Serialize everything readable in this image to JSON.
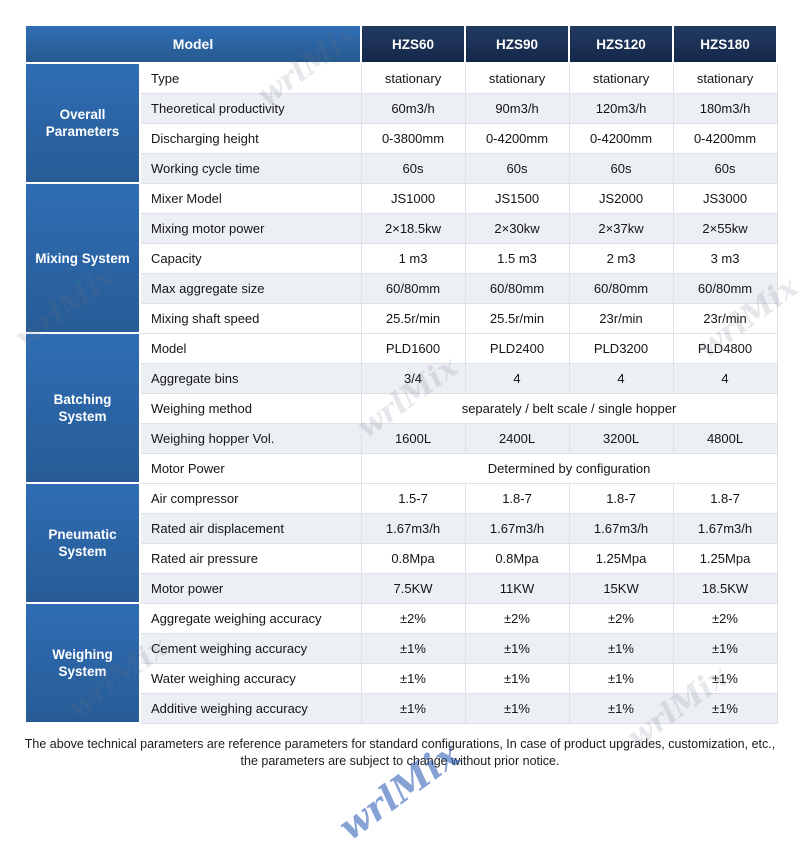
{
  "header": {
    "model_label": "Model",
    "columns": [
      "HZS60",
      "HZS90",
      "HZS120",
      "HZS180"
    ]
  },
  "sections": [
    {
      "name": "Overall Parameters",
      "rows": [
        {
          "label": "Type",
          "values": [
            "stationary",
            "stationary",
            "stationary",
            "stationary"
          ]
        },
        {
          "label": "Theoretical productivity",
          "values": [
            "60m3/h",
            "90m3/h",
            "120m3/h",
            "180m3/h"
          ]
        },
        {
          "label": "Discharging height",
          "values": [
            "0-3800mm",
            "0-4200mm",
            "0-4200mm",
            "0-4200mm"
          ]
        },
        {
          "label": "Working cycle time",
          "values": [
            "60s",
            "60s",
            "60s",
            "60s"
          ]
        }
      ]
    },
    {
      "name": "Mixing System",
      "rows": [
        {
          "label": "Mixer Model",
          "values": [
            "JS1000",
            "JS1500",
            "JS2000",
            "JS3000"
          ]
        },
        {
          "label": "Mixing motor power",
          "values": [
            "2×18.5kw",
            "2×30kw",
            "2×37kw",
            "2×55kw"
          ]
        },
        {
          "label": "Capacity",
          "values": [
            "1 m3",
            "1.5 m3",
            "2 m3",
            "3 m3"
          ]
        },
        {
          "label": "Max aggregate size",
          "values": [
            "60/80mm",
            "60/80mm",
            "60/80mm",
            "60/80mm"
          ]
        },
        {
          "label": "Mixing shaft speed",
          "values": [
            "25.5r/min",
            "25.5r/min",
            "23r/min",
            "23r/min"
          ]
        }
      ]
    },
    {
      "name": "Batching System",
      "rows": [
        {
          "label": "Model",
          "values": [
            "PLD1600",
            "PLD2400",
            "PLD3200",
            "PLD4800"
          ]
        },
        {
          "label": "Aggregate bins",
          "values": [
            "3/4",
            "4",
            "4",
            "4"
          ]
        },
        {
          "label": "Weighing method",
          "span": "separately  / belt scale / single hopper"
        },
        {
          "label": "Weighing hopper Vol.",
          "values": [
            "1600L",
            "2400L",
            "3200L",
            "4800L"
          ]
        },
        {
          "label": "Motor Power",
          "span": "Determined by configuration"
        }
      ]
    },
    {
      "name": "Pneumatic System",
      "rows": [
        {
          "label": "Air compressor",
          "values": [
            "1.5-7",
            "1.8-7",
            "1.8-7",
            "1.8-7"
          ]
        },
        {
          "label": "Rated air displacement",
          "values": [
            "1.67m3/h",
            "1.67m3/h",
            "1.67m3/h",
            "1.67m3/h"
          ]
        },
        {
          "label": "Rated air pressure",
          "values": [
            "0.8Mpa",
            "0.8Mpa",
            "1.25Mpa",
            "1.25Mpa"
          ]
        },
        {
          "label": "Motor power",
          "values": [
            "7.5KW",
            "11KW",
            "15KW",
            "18.5KW"
          ]
        }
      ]
    },
    {
      "name": "Weighing System",
      "rows": [
        {
          "label": "Aggregate weighing accuracy",
          "values": [
            "±2%",
            "±2%",
            "±2%",
            "±2%"
          ]
        },
        {
          "label": "Cement weighing accuracy",
          "values": [
            "±1%",
            "±1%",
            "±1%",
            "±1%"
          ]
        },
        {
          "label": "Water weighing accuracy",
          "values": [
            "±1%",
            "±1%",
            "±1%",
            "±1%"
          ]
        },
        {
          "label": "Additive weighing accuracy",
          "values": [
            "±1%",
            "±1%",
            "±1%",
            "±1%"
          ]
        }
      ]
    }
  ],
  "footer": {
    "line1": "The above technical parameters are reference parameters for standard configurations, In case of  product upgrades, customization, etc.,",
    "line2": "the parameters are subject to change without prior notice."
  },
  "watermark": {
    "text": "wrlMix"
  },
  "colors": {
    "category_blue": "#2d6bb1",
    "header_navy": "#1a2c4e",
    "stripe_gray": "#eceff3"
  }
}
